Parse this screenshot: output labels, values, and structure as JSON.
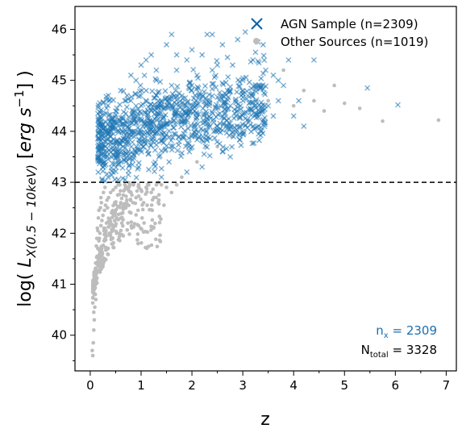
{
  "chart_data": {
    "type": "scatter",
    "xlabel": "z",
    "ylabel": {
      "prefix": "log( ",
      "L": "L",
      "sub": "X(0.5 − 10keV)",
      "mid": " [",
      "erg": "erg s",
      "exp": "−1",
      "close": "] )"
    },
    "xlim": [
      -0.3,
      7.2
    ],
    "ylim": [
      39.3,
      46.45
    ],
    "xticks": [
      "0",
      "1",
      "2",
      "3",
      "4",
      "5",
      "6",
      "7"
    ],
    "yticks": [
      "40",
      "41",
      "42",
      "43",
      "44",
      "45",
      "46"
    ],
    "threshold_line": 43,
    "colors": {
      "agn": "#1f77b4",
      "agn_marker": "#0a62a8",
      "other": "#bdbdbd",
      "text_blue": "#1a6fb0"
    },
    "legend": {
      "position": "top-right",
      "entries": [
        {
          "label": "AGN Sample (n=2309)",
          "marker": "x"
        },
        {
          "label": "Other Sources (n=1019)",
          "marker": "dot"
        }
      ]
    },
    "annotations": {
      "nx_base": "n",
      "nx_sub": "x",
      "nx_value": " = 2309",
      "ntotal_base": "N",
      "ntotal_sub": "total",
      "ntotal_value": " = 3328"
    },
    "series": [
      {
        "name": "AGN Sample (n=2309)",
        "marker": "x",
        "points": [
          [
            0.15,
            43.85
          ],
          [
            0.2,
            43.55
          ],
          [
            0.25,
            43.3
          ],
          [
            0.3,
            43.7
          ],
          [
            0.35,
            43.45
          ],
          [
            0.4,
            43.9
          ],
          [
            0.45,
            43.2
          ],
          [
            0.5,
            43.6
          ],
          [
            0.55,
            44.1
          ],
          [
            0.6,
            43.4
          ],
          [
            0.65,
            43.8
          ],
          [
            0.7,
            44.35
          ],
          [
            0.75,
            43.15
          ],
          [
            0.8,
            44.0
          ],
          [
            0.85,
            43.55
          ],
          [
            0.9,
            44.5
          ],
          [
            0.95,
            43.3
          ],
          [
            1.0,
            44.2
          ],
          [
            1.05,
            43.7
          ],
          [
            1.1,
            44.8
          ],
          [
            1.15,
            43.25
          ],
          [
            1.2,
            44.4
          ],
          [
            1.25,
            43.9
          ],
          [
            1.3,
            45.0
          ],
          [
            1.35,
            43.5
          ],
          [
            1.4,
            44.6
          ],
          [
            1.45,
            44.1
          ],
          [
            1.5,
            45.7
          ],
          [
            1.55,
            43.4
          ],
          [
            1.6,
            44.9
          ],
          [
            1.65,
            44.3
          ],
          [
            1.7,
            45.2
          ],
          [
            1.75,
            43.8
          ],
          [
            1.8,
            44.7
          ],
          [
            1.85,
            44.2
          ],
          [
            1.9,
            45.4
          ],
          [
            1.95,
            43.6
          ],
          [
            2.0,
            44.9
          ],
          [
            2.05,
            44.4
          ],
          [
            2.1,
            45.1
          ],
          [
            2.15,
            43.9
          ],
          [
            2.2,
            45.5
          ],
          [
            2.3,
            44.6
          ],
          [
            2.4,
            45.2
          ],
          [
            2.5,
            44.1
          ],
          [
            2.6,
            45.7
          ],
          [
            2.7,
            44.8
          ],
          [
            2.8,
            45.3
          ],
          [
            2.9,
            44.4
          ],
          [
            3.0,
            45.0
          ],
          [
            3.1,
            44.7
          ],
          [
            3.2,
            45.4
          ],
          [
            3.3,
            44.9
          ],
          [
            3.4,
            45.7
          ],
          [
            3.5,
            44.5
          ],
          [
            3.6,
            45.1
          ],
          [
            3.7,
            44.6
          ],
          [
            3.8,
            44.9
          ],
          [
            3.9,
            45.4
          ],
          [
            4.0,
            44.3
          ],
          [
            4.1,
            44.6
          ],
          [
            4.2,
            44.1
          ],
          [
            4.4,
            45.4
          ],
          [
            5.45,
            44.85
          ],
          [
            6.05,
            44.52
          ],
          [
            0.5,
            44.4
          ],
          [
            0.7,
            44.6
          ],
          [
            0.9,
            45.0
          ],
          [
            1.1,
            45.4
          ],
          [
            1.3,
            45.2
          ],
          [
            1.7,
            45.5
          ],
          [
            2.3,
            45.9
          ],
          [
            2.5,
            45.3
          ],
          [
            2.9,
            45.8
          ],
          [
            3.05,
            45.95
          ],
          [
            3.25,
            45.55
          ],
          [
            3.45,
            45.2
          ],
          [
            3.7,
            45.0
          ],
          [
            1.4,
            43.1
          ],
          [
            1.9,
            43.2
          ],
          [
            2.2,
            43.3
          ],
          [
            2.6,
            43.6
          ],
          [
            3.0,
            43.95
          ],
          [
            3.2,
            44.1
          ],
          [
            3.6,
            44.3
          ],
          [
            0.25,
            44.05
          ],
          [
            0.45,
            44.25
          ],
          [
            0.6,
            44.8
          ],
          [
            0.8,
            45.1
          ],
          [
            1.0,
            45.3
          ],
          [
            1.2,
            45.5
          ],
          [
            1.6,
            45.9
          ],
          [
            2.0,
            45.6
          ],
          [
            2.4,
            45.9
          ],
          [
            2.7,
            45.45
          ],
          [
            3.3,
            45.75
          ],
          [
            0.35,
            43.1
          ],
          [
            0.55,
            43.05
          ],
          [
            0.75,
            43.6
          ],
          [
            0.95,
            43.95
          ],
          [
            1.15,
            44.15
          ],
          [
            1.35,
            44.35
          ],
          [
            1.55,
            44.55
          ],
          [
            1.75,
            44.75
          ],
          [
            1.95,
            44.95
          ],
          [
            2.15,
            44.75
          ],
          [
            2.35,
            44.55
          ],
          [
            2.55,
            44.35
          ],
          [
            2.75,
            44.15
          ],
          [
            2.95,
            43.95
          ],
          [
            3.15,
            44.45
          ],
          [
            3.35,
            44.85
          ]
        ]
      },
      {
        "name": "Other Sources (n=1019)",
        "marker": "dot",
        "points": [
          [
            0.05,
            39.6
          ],
          [
            0.06,
            39.85
          ],
          [
            0.07,
            40.1
          ],
          [
            0.08,
            40.3
          ],
          [
            0.09,
            40.55
          ],
          [
            0.1,
            40.8
          ],
          [
            0.11,
            41.0
          ],
          [
            0.12,
            41.2
          ],
          [
            0.13,
            41.4
          ],
          [
            0.14,
            41.55
          ],
          [
            0.15,
            41.7
          ],
          [
            0.17,
            41.85
          ],
          [
            0.19,
            42.0
          ],
          [
            0.21,
            42.15
          ],
          [
            0.23,
            42.25
          ],
          [
            0.25,
            42.35
          ],
          [
            0.28,
            42.45
          ],
          [
            0.3,
            42.55
          ],
          [
            0.33,
            42.65
          ],
          [
            0.36,
            42.7
          ],
          [
            0.4,
            42.8
          ],
          [
            0.45,
            42.85
          ],
          [
            0.5,
            42.9
          ],
          [
            0.55,
            42.95
          ],
          [
            0.6,
            42.6
          ],
          [
            0.65,
            42.75
          ],
          [
            0.7,
            42.5
          ],
          [
            0.75,
            42.85
          ],
          [
            0.8,
            42.4
          ],
          [
            0.85,
            42.95
          ],
          [
            0.9,
            42.7
          ],
          [
            1.0,
            42.85
          ],
          [
            1.1,
            42.9
          ],
          [
            1.2,
            42.8
          ],
          [
            1.3,
            42.95
          ],
          [
            0.08,
            40.9
          ],
          [
            0.1,
            41.3
          ],
          [
            0.12,
            41.75
          ],
          [
            0.14,
            42.1
          ],
          [
            0.16,
            42.3
          ],
          [
            0.18,
            41.9
          ],
          [
            0.2,
            42.5
          ],
          [
            0.22,
            42.6
          ],
          [
            0.24,
            41.6
          ],
          [
            0.26,
            42.8
          ],
          [
            0.32,
            42.2
          ],
          [
            0.38,
            42.0
          ],
          [
            0.42,
            42.4
          ],
          [
            0.48,
            42.6
          ],
          [
            0.52,
            42.3
          ],
          [
            0.58,
            42.95
          ],
          [
            0.62,
            42.2
          ],
          [
            0.68,
            42.95
          ],
          [
            0.72,
            42.65
          ],
          [
            0.78,
            42.95
          ],
          [
            0.82,
            42.75
          ],
          [
            0.95,
            42.95
          ],
          [
            1.05,
            42.6
          ],
          [
            1.15,
            42.95
          ],
          [
            1.25,
            42.7
          ],
          [
            1.4,
            42.95
          ],
          [
            1.5,
            42.9
          ],
          [
            1.7,
            42.95
          ],
          [
            3.8,
            45.2
          ],
          [
            4.0,
            44.5
          ],
          [
            4.2,
            44.8
          ],
          [
            4.4,
            44.6
          ],
          [
            4.6,
            44.4
          ],
          [
            4.8,
            44.9
          ],
          [
            5.0,
            44.55
          ],
          [
            5.3,
            44.45
          ],
          [
            5.75,
            44.2
          ],
          [
            6.85,
            44.22
          ],
          [
            1.8,
            43.1
          ],
          [
            2.1,
            43.4
          ],
          [
            2.5,
            43.7
          ],
          [
            2.8,
            43.9
          ],
          [
            3.1,
            44.2
          ],
          [
            3.5,
            44.6
          ],
          [
            0.04,
            39.7
          ],
          [
            0.07,
            40.45
          ],
          [
            0.09,
            41.1
          ],
          [
            0.11,
            40.7
          ],
          [
            0.13,
            41.9
          ],
          [
            0.15,
            42.05
          ],
          [
            0.17,
            42.45
          ],
          [
            0.19,
            41.5
          ],
          [
            0.21,
            42.7
          ],
          [
            0.27,
            42.1
          ],
          [
            0.29,
            42.9
          ],
          [
            0.31,
            42.05
          ],
          [
            0.34,
            42.5
          ],
          [
            0.44,
            42.15
          ],
          [
            0.54,
            42.75
          ],
          [
            0.64,
            42.4
          ],
          [
            0.74,
            42.2
          ],
          [
            0.84,
            42.6
          ],
          [
            0.94,
            42.45
          ],
          [
            1.02,
            42.3
          ],
          [
            1.12,
            42.55
          ],
          [
            1.22,
            42.45
          ],
          [
            1.35,
            42.65
          ],
          [
            1.45,
            42.55
          ],
          [
            1.6,
            42.8
          ]
        ]
      }
    ]
  }
}
